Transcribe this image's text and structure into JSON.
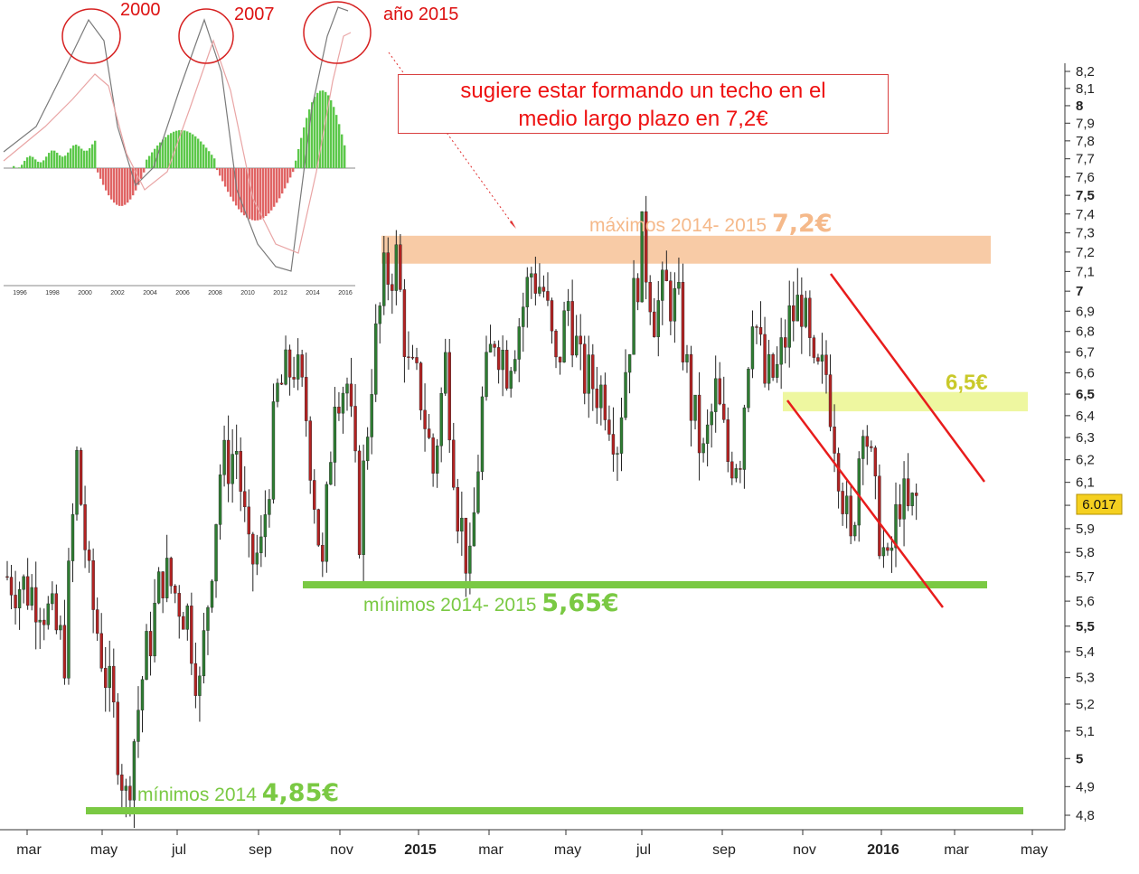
{
  "chart_data": [
    {
      "type": "candlestick",
      "y_axis": {
        "ticks": [
          "8,2",
          "8,1",
          "8",
          "7,9",
          "7,8",
          "7,7",
          "7,6",
          "7,5",
          "7,4",
          "7,3",
          "7,2",
          "7,1",
          "7",
          "6,9",
          "6,8",
          "6,7",
          "6,6",
          "6,5",
          "6,4",
          "6,3",
          "6,2",
          "6,1",
          "6",
          "5,9",
          "5,8",
          "5,7",
          "5,6",
          "5,5",
          "5,4",
          "5,3",
          "5,2",
          "5,1",
          "5",
          "4,9",
          "4,8"
        ],
        "bold_ticks": [
          "8",
          "7,5",
          "7",
          "6,5",
          "5,5",
          "5"
        ],
        "ylim": [
          4.77,
          8.23
        ],
        "scale": "log"
      },
      "x_axis": {
        "ticks": [
          "mar",
          "may",
          "jul",
          "sep",
          "nov",
          "2015",
          "mar",
          "may",
          "jul",
          "sep",
          "nov",
          "2016",
          "mar",
          "may"
        ],
        "bold_ticks": [
          "2015",
          "2016"
        ]
      },
      "last_price": "6.017",
      "price_path": [
        {
          "x": 0,
          "y": 5.7
        },
        {
          "x": 8,
          "y": 5.62
        },
        {
          "x": 14,
          "y": 5.4
        },
        {
          "x": 17,
          "y": 6.2
        },
        {
          "x": 20,
          "y": 5.65
        },
        {
          "x": 26,
          "y": 5.15
        },
        {
          "x": 29,
          "y": 4.85
        },
        {
          "x": 33,
          "y": 5.3
        },
        {
          "x": 38,
          "y": 5.72
        },
        {
          "x": 44,
          "y": 5.55
        },
        {
          "x": 47,
          "y": 5.25
        },
        {
          "x": 52,
          "y": 6.15
        },
        {
          "x": 56,
          "y": 6.25
        },
        {
          "x": 59,
          "y": 5.75
        },
        {
          "x": 62,
          "y": 5.8
        },
        {
          "x": 66,
          "y": 6.5
        },
        {
          "x": 70,
          "y": 6.65
        },
        {
          "x": 73,
          "y": 6.4
        },
        {
          "x": 77,
          "y": 5.7
        },
        {
          "x": 80,
          "y": 6.55
        },
        {
          "x": 83,
          "y": 6.55
        },
        {
          "x": 86,
          "y": 5.9
        },
        {
          "x": 89,
          "y": 6.6
        },
        {
          "x": 92,
          "y": 7.05
        },
        {
          "x": 95,
          "y": 7.16
        },
        {
          "x": 98,
          "y": 6.6
        },
        {
          "x": 101,
          "y": 6.5
        },
        {
          "x": 104,
          "y": 6.15
        },
        {
          "x": 107,
          "y": 6.65
        },
        {
          "x": 110,
          "y": 6.0
        },
        {
          "x": 113,
          "y": 5.7
        },
        {
          "x": 116,
          "y": 6.45
        },
        {
          "x": 119,
          "y": 6.8
        },
        {
          "x": 122,
          "y": 6.65
        },
        {
          "x": 125,
          "y": 6.85
        },
        {
          "x": 128,
          "y": 7.1
        },
        {
          "x": 131,
          "y": 7.0
        },
        {
          "x": 134,
          "y": 6.6
        },
        {
          "x": 137,
          "y": 6.95
        },
        {
          "x": 140,
          "y": 6.6
        },
        {
          "x": 143,
          "y": 6.55
        },
        {
          "x": 146,
          "y": 6.5
        },
        {
          "x": 149,
          "y": 6.3
        },
        {
          "x": 152,
          "y": 6.8
        },
        {
          "x": 155,
          "y": 7.25
        },
        {
          "x": 158,
          "y": 6.9
        },
        {
          "x": 161,
          "y": 7.0
        },
        {
          "x": 164,
          "y": 6.9
        },
        {
          "x": 167,
          "y": 6.45
        },
        {
          "x": 170,
          "y": 6.2
        },
        {
          "x": 173,
          "y": 6.5
        },
        {
          "x": 176,
          "y": 6.2
        },
        {
          "x": 179,
          "y": 6.25
        },
        {
          "x": 182,
          "y": 6.95
        },
        {
          "x": 185,
          "y": 6.55
        },
        {
          "x": 188,
          "y": 6.6
        },
        {
          "x": 191,
          "y": 6.85
        },
        {
          "x": 194,
          "y": 6.95
        },
        {
          "x": 197,
          "y": 6.55
        },
        {
          "x": 200,
          "y": 6.6
        },
        {
          "x": 203,
          "y": 6.2
        },
        {
          "x": 206,
          "y": 5.8
        },
        {
          "x": 209,
          "y": 6.45
        },
        {
          "x": 212,
          "y": 6.0
        },
        {
          "x": 215,
          "y": 5.7
        },
        {
          "x": 218,
          "y": 6.05
        },
        {
          "x": 220,
          "y": 5.95
        },
        {
          "x": 222,
          "y": 6.02
        }
      ]
    },
    {
      "type": "line",
      "inset": true,
      "x_ticks": [
        "1996",
        "1998",
        "2000",
        "2002",
        "2004",
        "2006",
        "2008",
        "2010",
        "2012",
        "2014",
        "2016"
      ],
      "callouts": [
        "2000",
        "2007",
        "año 2015"
      ]
    }
  ],
  "annotations": {
    "comment": [
      "sugiere estar formando un techo en el",
      "medio largo plazo en 7,2€"
    ],
    "max_label": "máximos 2014- 2015",
    "max_value": "7,2€",
    "level_65": "6,5€",
    "min_1415_label": "mínimos 2014- 2015",
    "min_1415_value": "5,65€",
    "min_14_label": "mínimos 2014",
    "min_14_value": "4,85€"
  },
  "colors": {
    "up_candle": "#2e7d32",
    "down_candle": "#b22222",
    "max_band": "#f8cba6",
    "band_65": "#eef7a0",
    "support_line": "#7ac943",
    "channel": "#e81c1c",
    "comment_text": "#ee1111",
    "label_65": "#c9c92a",
    "price_box": "#f5d020"
  }
}
